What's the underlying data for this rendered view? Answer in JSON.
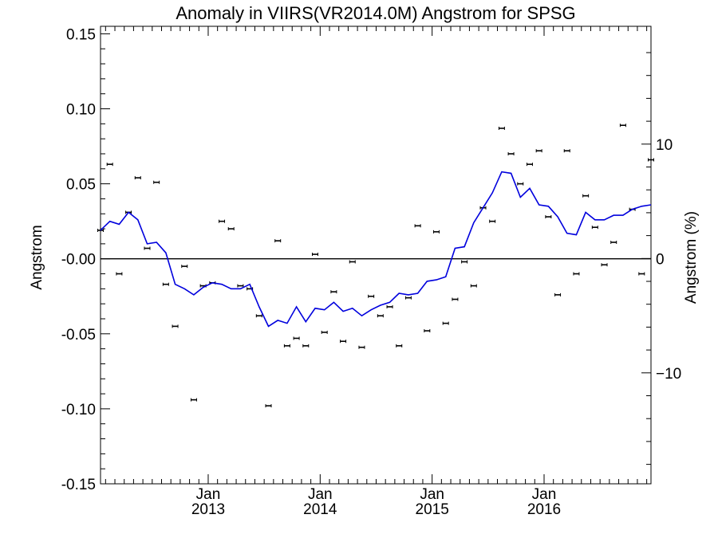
{
  "chart_data": {
    "type": "line",
    "title": "Anomaly in VIIRS(VR2014.0M) Angstrom for SPSG",
    "ylabel": "Angstrom",
    "y2label": "Angstrom (%)",
    "xlabel": "",
    "ylim": [
      -0.15,
      0.155
    ],
    "y2lim": [
      -19.7,
      20.3
    ],
    "x_range": [
      "2012-01-15",
      "2016-12-15"
    ],
    "grid": false,
    "zero_line": true,
    "y_ticks": [
      "0.15",
      "0.10",
      "0.05",
      "-0.00",
      "-0.05",
      "-0.10",
      "-0.15"
    ],
    "y_tick_values": [
      0.15,
      0.1,
      0.05,
      0.0,
      -0.05,
      -0.1,
      -0.15
    ],
    "y2_ticks": [
      "10",
      "0",
      "−10"
    ],
    "y2_tick_values": [
      10,
      0,
      -10
    ],
    "x_ticks": [
      {
        "month": "Jan",
        "year": "2013",
        "date": "2013-01"
      },
      {
        "month": "Jan",
        "year": "2014",
        "date": "2014-01"
      },
      {
        "month": "Jan",
        "year": "2015",
        "date": "2015-01"
      },
      {
        "month": "Jan",
        "year": "2016",
        "date": "2016-01"
      }
    ],
    "series": [
      {
        "style": "points_with_errorbars",
        "color": "#000000",
        "x": [
          "2012-01",
          "2012-02",
          "2012-03",
          "2012-04",
          "2012-05",
          "2012-06",
          "2012-07",
          "2012-08",
          "2012-09",
          "2012-10",
          "2012-11",
          "2012-12",
          "2013-01",
          "2013-02",
          "2013-03",
          "2013-04",
          "2013-05",
          "2013-06",
          "2013-07",
          "2013-08",
          "2013-09",
          "2013-10",
          "2013-11",
          "2013-12",
          "2014-01",
          "2014-02",
          "2014-03",
          "2014-04",
          "2014-05",
          "2014-06",
          "2014-07",
          "2014-08",
          "2014-09",
          "2014-10",
          "2014-11",
          "2014-12",
          "2015-01",
          "2015-02",
          "2015-03",
          "2015-04",
          "2015-05",
          "2015-06",
          "2015-07",
          "2015-08",
          "2015-09",
          "2015-10",
          "2015-11",
          "2015-12",
          "2016-01",
          "2016-02",
          "2016-03",
          "2016-04",
          "2016-05",
          "2016-06",
          "2016-07",
          "2016-08",
          "2016-09",
          "2016-10",
          "2016-11",
          "2016-12"
        ],
        "values": [
          0.019,
          0.063,
          -0.01,
          0.031,
          0.054,
          0.007,
          0.051,
          -0.017,
          -0.045,
          -0.005,
          -0.094,
          -0.018,
          -0.016,
          0.025,
          0.02,
          -0.018,
          -0.02,
          -0.038,
          -0.098,
          0.012,
          -0.058,
          -0.053,
          -0.058,
          0.003,
          -0.049,
          -0.022,
          -0.055,
          -0.002,
          -0.059,
          -0.025,
          -0.038,
          -0.032,
          -0.058,
          -0.026,
          0.022,
          -0.048,
          0.018,
          -0.043,
          -0.027,
          -0.002,
          -0.018,
          0.034,
          0.025,
          0.087,
          0.07,
          0.05,
          0.063,
          0.072,
          0.028,
          -0.024,
          0.072,
          -0.01,
          0.042,
          0.021,
          -0.004,
          0.011,
          0.089,
          0.033,
          -0.01,
          0.066
        ]
      },
      {
        "style": "line",
        "color": "#0000dd",
        "x": [
          "2012-01",
          "2012-02",
          "2012-03",
          "2012-04",
          "2012-05",
          "2012-06",
          "2012-07",
          "2012-08",
          "2012-09",
          "2012-10",
          "2012-11",
          "2012-12",
          "2013-01",
          "2013-02",
          "2013-03",
          "2013-04",
          "2013-05",
          "2013-06",
          "2013-07",
          "2013-08",
          "2013-09",
          "2013-10",
          "2013-11",
          "2013-12",
          "2014-01",
          "2014-02",
          "2014-03",
          "2014-04",
          "2014-05",
          "2014-06",
          "2014-07",
          "2014-08",
          "2014-09",
          "2014-10",
          "2014-11",
          "2014-12",
          "2015-01",
          "2015-02",
          "2015-03",
          "2015-04",
          "2015-05",
          "2015-06",
          "2015-07",
          "2015-08",
          "2015-09",
          "2015-10",
          "2015-11",
          "2015-12",
          "2016-01",
          "2016-02",
          "2016-03",
          "2016-04",
          "2016-05",
          "2016-06",
          "2016-07",
          "2016-08",
          "2016-09",
          "2016-10",
          "2016-11",
          "2016-12"
        ],
        "values": [
          0.019,
          0.025,
          0.023,
          0.031,
          0.026,
          0.01,
          0.011,
          0.004,
          -0.017,
          -0.02,
          -0.024,
          -0.019,
          -0.016,
          -0.017,
          -0.02,
          -0.02,
          -0.017,
          -0.032,
          -0.045,
          -0.041,
          -0.043,
          -0.032,
          -0.042,
          -0.033,
          -0.034,
          -0.029,
          -0.035,
          -0.033,
          -0.038,
          -0.034,
          -0.031,
          -0.029,
          -0.023,
          -0.024,
          -0.023,
          -0.015,
          -0.014,
          -0.012,
          0.007,
          0.008,
          0.024,
          0.034,
          0.044,
          0.058,
          0.057,
          0.041,
          0.047,
          0.036,
          0.035,
          0.028,
          0.017,
          0.016,
          0.031,
          0.026,
          0.026,
          0.029,
          0.029,
          0.033,
          0.035,
          0.036
        ]
      }
    ]
  }
}
